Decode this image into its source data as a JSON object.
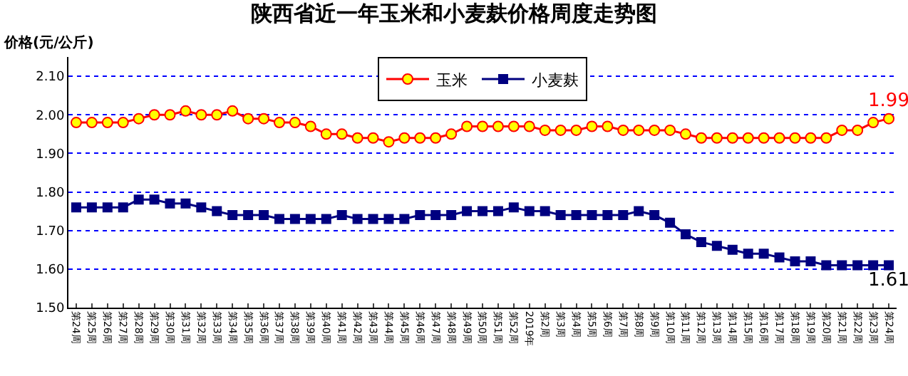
{
  "chart_data": {
    "type": "line",
    "title": "陕西省近一年玉米和小麦麸价格周度走势图",
    "ylabel": "价格(元/公斤)",
    "categories": [
      "第24周",
      "第25周",
      "第26周",
      "第27周",
      "第28周",
      "第29周",
      "第30周",
      "第31周",
      "第32周",
      "第33周",
      "第34周",
      "第35周",
      "第36周",
      "第37周",
      "第38周",
      "第39周",
      "第40周",
      "第41周",
      "第42周",
      "第43周",
      "第44周",
      "第45周",
      "第46周",
      "第47周",
      "第48周",
      "第49周",
      "第50周",
      "第51周",
      "第52周",
      "2019年",
      "第2周",
      "第3周",
      "第4周",
      "第5周",
      "第6周",
      "第7周",
      "第8周",
      "第9周",
      "第10周",
      "第11周",
      "第12周",
      "第13周",
      "第14周",
      "第15周",
      "第16周",
      "第17周",
      "第18周",
      "第19周",
      "第20周",
      "第21周",
      "第22周",
      "第23周",
      "第24周"
    ],
    "series": [
      {
        "name": "玉米",
        "color": "#ff0000",
        "marker": "circle",
        "values": [
          1.98,
          1.98,
          1.98,
          1.98,
          1.99,
          2.0,
          2.0,
          2.01,
          2.0,
          2.0,
          2.01,
          1.99,
          1.99,
          1.98,
          1.98,
          1.97,
          1.95,
          1.95,
          1.94,
          1.94,
          1.93,
          1.94,
          1.94,
          1.94,
          1.95,
          1.97,
          1.97,
          1.97,
          1.97,
          1.97,
          1.96,
          1.96,
          1.96,
          1.97,
          1.97,
          1.96,
          1.96,
          1.96,
          1.96,
          1.95,
          1.94,
          1.94,
          1.94,
          1.94,
          1.94,
          1.94,
          1.94,
          1.94,
          1.94,
          1.96,
          1.96,
          1.98,
          1.99
        ],
        "value_labels": [
          null,
          null,
          null,
          null,
          null,
          null,
          null,
          null,
          null,
          null,
          null,
          null,
          null,
          null,
          null,
          null,
          null,
          null,
          null,
          null,
          null,
          null,
          null,
          null,
          null,
          null,
          null,
          null,
          null,
          null,
          null,
          null,
          null,
          null,
          null,
          null,
          null,
          null,
          null,
          null,
          null,
          null,
          null,
          null,
          null,
          null,
          null,
          null,
          null,
          null,
          null,
          null,
          "1.99"
        ]
      },
      {
        "name": "小麦麸",
        "color": "#000080",
        "marker": "square",
        "values": [
          1.76,
          1.76,
          1.76,
          1.76,
          1.78,
          1.78,
          1.77,
          1.77,
          1.76,
          1.75,
          1.74,
          1.74,
          1.74,
          1.73,
          1.73,
          1.73,
          1.73,
          1.74,
          1.73,
          1.73,
          1.73,
          1.73,
          1.74,
          1.74,
          1.74,
          1.75,
          1.75,
          1.75,
          1.76,
          1.75,
          1.75,
          1.74,
          1.74,
          1.74,
          1.74,
          1.74,
          1.75,
          1.74,
          1.72,
          1.69,
          1.67,
          1.66,
          1.65,
          1.64,
          1.64,
          1.63,
          1.62,
          1.62,
          1.61,
          1.61,
          1.61,
          1.61,
          1.61
        ],
        "value_labels": [
          null,
          null,
          null,
          null,
          null,
          null,
          null,
          null,
          null,
          null,
          null,
          null,
          null,
          null,
          null,
          null,
          null,
          null,
          null,
          null,
          null,
          null,
          null,
          null,
          null,
          null,
          null,
          null,
          null,
          null,
          null,
          null,
          null,
          null,
          null,
          null,
          null,
          null,
          null,
          null,
          null,
          null,
          null,
          null,
          null,
          null,
          null,
          null,
          null,
          null,
          null,
          null,
          "1.61"
        ]
      }
    ],
    "ylim": [
      1.5,
      2.15
    ],
    "yticks": [
      {
        "value": 1.5,
        "label": "1.50"
      },
      {
        "value": 1.6,
        "label": "1.60"
      },
      {
        "value": 1.7,
        "label": "1.70"
      },
      {
        "value": 1.8,
        "label": "1.80"
      },
      {
        "value": 1.9,
        "label": "1.90"
      },
      {
        "value": 2.0,
        "label": "2.00"
      },
      {
        "value": 2.1,
        "label": "2.10"
      }
    ],
    "grid": "y",
    "legend": "top",
    "line_style": "solid"
  }
}
